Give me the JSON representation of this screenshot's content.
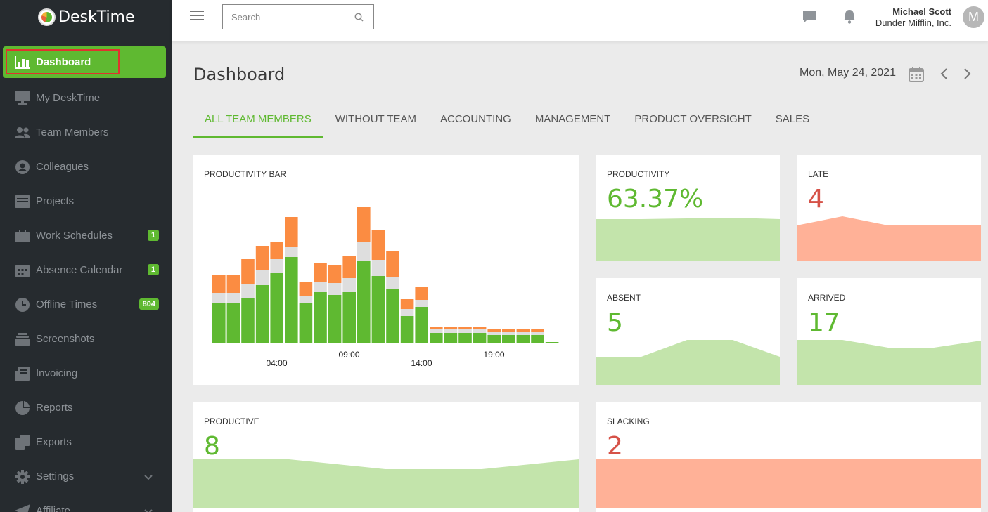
{
  "app": {
    "name": "DeskTime"
  },
  "sidebar": {
    "items": [
      {
        "label": "Dashboard",
        "icon": "bar-chart-icon",
        "active": true
      },
      {
        "label": "My DeskTime",
        "icon": "monitor-icon"
      },
      {
        "label": "Team Members",
        "icon": "users-icon"
      },
      {
        "label": "Colleagues",
        "icon": "user-circle-icon"
      },
      {
        "label": "Projects",
        "icon": "inbox-icon"
      },
      {
        "label": "Work Schedules",
        "icon": "briefcase-icon",
        "badge": "1"
      },
      {
        "label": "Absence Calendar",
        "icon": "calendar-icon",
        "badge": "1"
      },
      {
        "label": "Offline Times",
        "icon": "clock-icon",
        "badge": "804"
      },
      {
        "label": "Screenshots",
        "icon": "layers-icon"
      },
      {
        "label": "Invoicing",
        "icon": "invoice-icon"
      },
      {
        "label": "Reports",
        "icon": "pie-chart-icon"
      },
      {
        "label": "Exports",
        "icon": "files-icon"
      },
      {
        "label": "Settings",
        "icon": "gear-icon",
        "expandable": true
      },
      {
        "label": "Affiliate",
        "icon": "paper-plane-icon",
        "expandable": true
      }
    ]
  },
  "header": {
    "search_placeholder": "Search",
    "user_name": "Michael Scott",
    "company": "Dunder Mifflin, Inc.",
    "avatar_initial": "M"
  },
  "main": {
    "title": "Dashboard",
    "date": "Mon, May 24, 2021",
    "tabs": [
      {
        "label": "ALL TEAM MEMBERS",
        "active": true
      },
      {
        "label": "WITHOUT TEAM"
      },
      {
        "label": "ACCOUNTING"
      },
      {
        "label": "MANAGEMENT"
      },
      {
        "label": "PRODUCT OVERSIGHT"
      },
      {
        "label": "SALES"
      }
    ]
  },
  "cards": {
    "productivity_bar": {
      "title": "PRODUCTIVITY BAR"
    },
    "productivity": {
      "title": "PRODUCTIVITY",
      "value": "63.37%"
    },
    "late": {
      "title": "LATE",
      "value": "4"
    },
    "absent": {
      "title": "ABSENT",
      "value": "5"
    },
    "arrived": {
      "title": "ARRIVED",
      "value": "17"
    },
    "productive": {
      "title": "PRODUCTIVE",
      "value": "8"
    },
    "slacking": {
      "title": "SLACKING",
      "value": "2"
    }
  },
  "colors": {
    "productive": "#5fb931",
    "neutral": "#dedede",
    "unproductive": "#fb8c42",
    "spark_green": "#c3e4ab",
    "spark_red": "#ffb197"
  },
  "chart_data": {
    "type": "bar",
    "stacked": true,
    "x_tick_labels": [
      "04:00",
      "09:00",
      "14:00",
      "19:00"
    ],
    "series": [
      {
        "values": [
          57,
          57,
          65,
          83,
          100,
          123,
          57,
          73,
          69,
          73,
          117,
          96,
          77,
          39,
          52,
          15,
          15,
          15,
          15,
          12,
          12,
          12,
          12,
          2
        ]
      },
      {
        "values": [
          15,
          15,
          20,
          21,
          20,
          14,
          10,
          15,
          17,
          20,
          28,
          23,
          17,
          10,
          10,
          5,
          5,
          5,
          5,
          5,
          5,
          5,
          5,
          0
        ]
      },
      {
        "values": [
          26,
          26,
          35,
          35,
          25,
          43,
          21,
          26,
          26,
          32,
          49,
          42,
          37,
          14,
          18,
          4,
          4,
          4,
          4,
          3,
          4,
          3,
          4,
          0
        ]
      }
    ]
  }
}
